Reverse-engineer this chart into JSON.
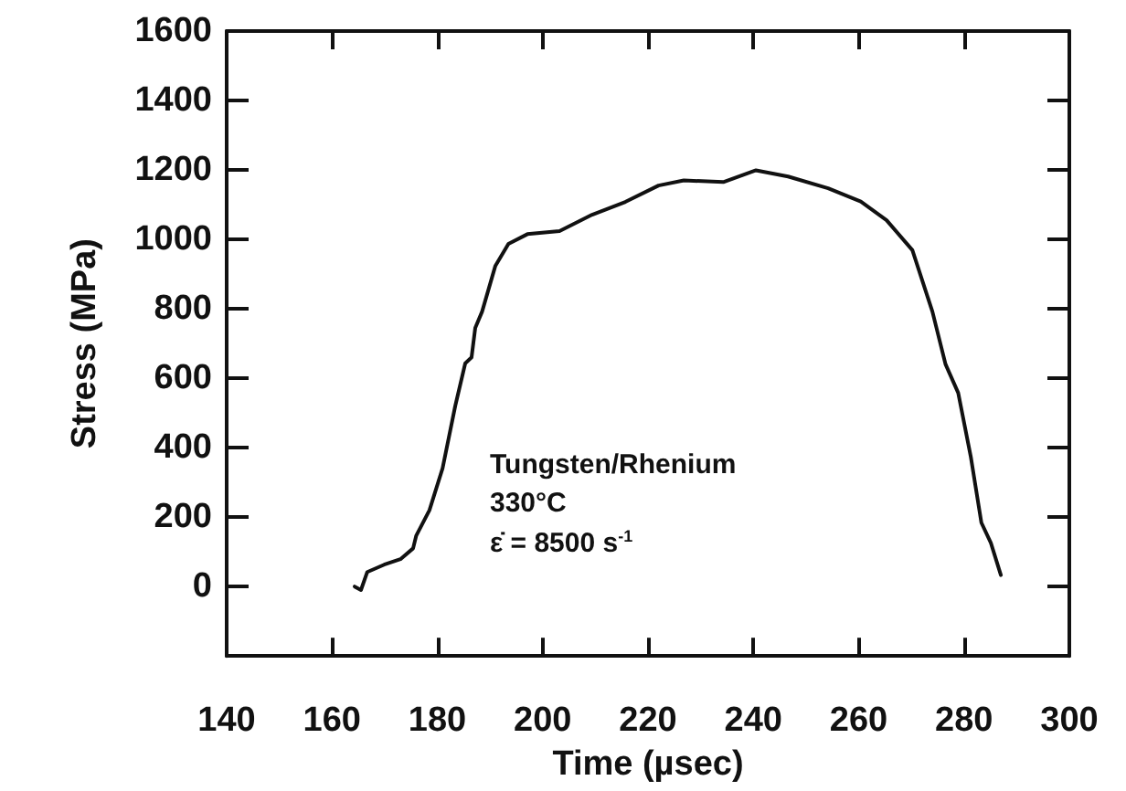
{
  "chart_data": {
    "type": "line",
    "xlabel": "Time (µsec)",
    "ylabel": "Stress (MPa)",
    "xlim": [
      140,
      300
    ],
    "xticks": [
      140,
      160,
      180,
      200,
      220,
      240,
      260,
      280,
      300
    ],
    "ylim": [
      -200,
      1600
    ],
    "yticks": [
      0,
      200,
      400,
      600,
      800,
      1000,
      1200,
      1400,
      1600
    ],
    "grid": false,
    "marker": "none",
    "line_style": "solid",
    "series": [
      {
        "color": "#111111",
        "x": [
          164.3,
          165.5,
          166.7,
          169.9,
          173,
          175.4,
          176,
          178.5,
          181,
          183.4,
          185.3,
          186.5,
          187.2,
          188.5,
          191,
          193.5,
          197.1,
          203.2,
          209.4,
          215.7,
          222,
          226.8,
          234.3,
          240.5,
          246.6,
          254.2,
          260.4,
          265.3,
          270.2,
          274,
          276.5,
          278.9,
          281.3,
          283.3,
          285.1,
          287
        ],
        "values": [
          0,
          -10,
          42,
          63,
          79,
          110,
          147,
          220,
          341,
          520,
          643,
          660,
          745,
          792,
          923,
          987,
          1015,
          1024,
          1071,
          1108,
          1155,
          1170,
          1165,
          1199,
          1181,
          1147,
          1109,
          1055,
          969,
          792,
          640,
          558,
          373,
          184,
          126,
          33
        ]
      }
    ],
    "annotations": [
      "Tungsten/Rhenium",
      "330°C",
      "ε̇ = 8500 s$^{-1}$"
    ]
  }
}
